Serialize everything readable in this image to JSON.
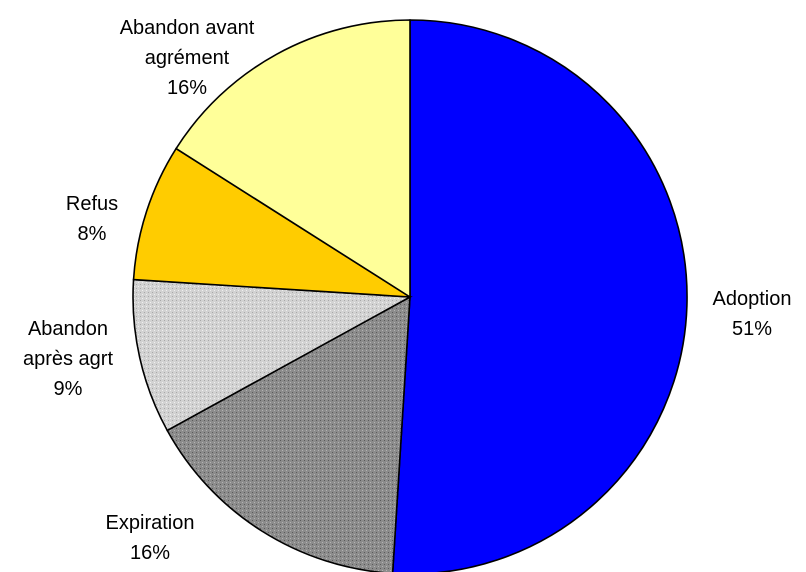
{
  "chart_data": {
    "type": "pie",
    "start_angle_deg": 0,
    "direction": "clockwise",
    "slices": [
      {
        "label": "Adoption",
        "lines": [
          "Adoption"
        ],
        "value": 51,
        "value_label": "51%",
        "color": "#0000ff",
        "pattern": "solid"
      },
      {
        "label": "Expiration",
        "lines": [
          "Expiration"
        ],
        "value": 16,
        "value_label": "16%",
        "color": "#8c8c8c",
        "pattern": "dots"
      },
      {
        "label": "Abandon après agrt",
        "lines": [
          "Abandon",
          "après agrt"
        ],
        "value": 9,
        "value_label": "9%",
        "color": "#cfcfcf",
        "pattern": "dots"
      },
      {
        "label": "Refus",
        "lines": [
          "Refus"
        ],
        "value": 8,
        "value_label": "8%",
        "color": "#ffcc00",
        "pattern": "solid"
      },
      {
        "label": "Abandon avant agrément",
        "lines": [
          "Abandon avant",
          "agrément"
        ],
        "value": 16,
        "value_label": "16%",
        "color": "#ffff99",
        "pattern": "solid"
      }
    ]
  }
}
